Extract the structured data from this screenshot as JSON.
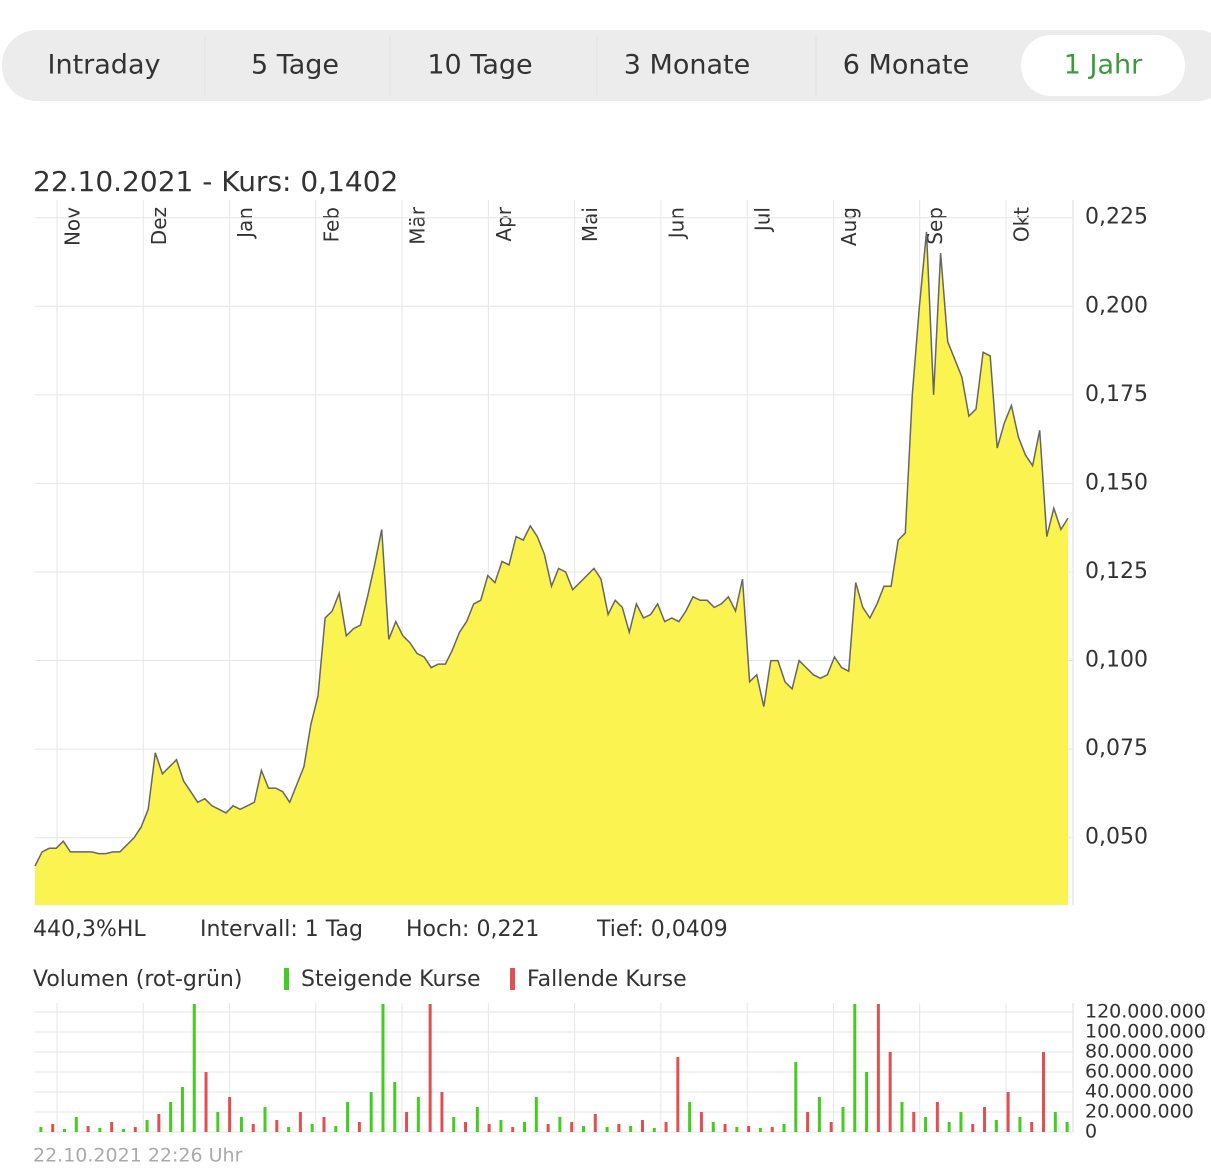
{
  "tabs": [
    "Intraday",
    "5 Tage",
    "10 Tage",
    "3 Monate",
    "6 Monate",
    "1 Jahr"
  ],
  "active_tab": 5,
  "chart_data": [
    {
      "type": "area",
      "title": "22.10.2021  - Kurs: 0,1402",
      "months": [
        "Nov",
        "Dez",
        "Jan",
        "Feb",
        "Mär",
        "Apr",
        "Mai",
        "Jun",
        "Jul",
        "Aug",
        "Sep",
        "Okt"
      ],
      "series": [
        {
          "name": "Kurs",
          "color": "#fbf34f",
          "line_color": "#666666",
          "values": [
            0.042,
            0.046,
            0.047,
            0.047,
            0.049,
            0.046,
            0.046,
            0.046,
            0.046,
            0.0455,
            0.0455,
            0.046,
            0.046,
            0.048,
            0.05,
            0.053,
            0.058,
            0.074,
            0.068,
            0.07,
            0.072,
            0.066,
            0.063,
            0.06,
            0.061,
            0.059,
            0.058,
            0.057,
            0.059,
            0.058,
            0.059,
            0.06,
            0.069,
            0.064,
            0.064,
            0.063,
            0.06,
            0.065,
            0.07,
            0.082,
            0.09,
            0.112,
            0.114,
            0.119,
            0.107,
            0.109,
            0.11,
            0.118,
            0.127,
            0.137,
            0.106,
            0.111,
            0.107,
            0.105,
            0.102,
            0.101,
            0.098,
            0.099,
            0.099,
            0.103,
            0.108,
            0.111,
            0.116,
            0.117,
            0.124,
            0.122,
            0.128,
            0.127,
            0.135,
            0.134,
            0.138,
            0.135,
            0.13,
            0.121,
            0.126,
            0.125,
            0.12,
            0.122,
            0.124,
            0.126,
            0.123,
            0.113,
            0.117,
            0.115,
            0.108,
            0.116,
            0.112,
            0.113,
            0.116,
            0.111,
            0.112,
            0.111,
            0.114,
            0.118,
            0.117,
            0.117,
            0.115,
            0.116,
            0.118,
            0.114,
            0.123,
            0.094,
            0.096,
            0.087,
            0.1,
            0.1,
            0.094,
            0.092,
            0.1,
            0.098,
            0.096,
            0.095,
            0.096,
            0.101,
            0.098,
            0.097,
            0.122,
            0.115,
            0.112,
            0.116,
            0.121,
            0.121,
            0.134,
            0.136,
            0.175,
            0.2,
            0.221,
            0.175,
            0.215,
            0.19,
            0.185,
            0.18,
            0.169,
            0.171,
            0.187,
            0.186,
            0.16,
            0.167,
            0.172,
            0.163,
            0.158,
            0.155,
            0.165,
            0.135,
            0.143,
            0.137,
            0.1402
          ]
        }
      ],
      "ylim": [
        0.031,
        0.23
      ],
      "yticks": [
        {
          "value": 0.05,
          "label": "0,050"
        },
        {
          "value": 0.075,
          "label": "0,075"
        },
        {
          "value": 0.1,
          "label": "0,100"
        },
        {
          "value": 0.125,
          "label": "0,125"
        },
        {
          "value": 0.15,
          "label": "0,150"
        },
        {
          "value": 0.175,
          "label": "0,175"
        },
        {
          "value": 0.2,
          "label": "0,200"
        },
        {
          "value": 0.225,
          "label": "0,225"
        }
      ],
      "grid": true,
      "stats": [
        "440,3%HL",
        "Intervall: 1 Tag",
        "Hoch:  0,221",
        "Tief: 0,0409"
      ]
    },
    {
      "type": "bar",
      "title": "Volumen (rot-grün)",
      "series": [
        {
          "name": "Steigende Kurse",
          "color": "#44cc22",
          "values": [
            5000000,
            null,
            3000000,
            15000000,
            null,
            4000000,
            null,
            3000000,
            null,
            12000000,
            null,
            30000000,
            45000000,
            128000000,
            null,
            20000000,
            null,
            15000000,
            null,
            25000000,
            null,
            5000000,
            null,
            8000000,
            null,
            6000000,
            30000000,
            null,
            40000000,
            128000000,
            50000000,
            null,
            35000000,
            null,
            null,
            15000000,
            null,
            25000000,
            null,
            12000000,
            null,
            10000000,
            35000000,
            null,
            15000000,
            null,
            6000000,
            null,
            5000000,
            null,
            6000000,
            null,
            4000000,
            null,
            null,
            30000000,
            null,
            10000000,
            null,
            5000000,
            null,
            4000000,
            null,
            8000000,
            70000000,
            null,
            35000000,
            null,
            25000000,
            128000000,
            60000000,
            null,
            null,
            30000000,
            null,
            15000000,
            null,
            10000000,
            20000000,
            null,
            null,
            12000000,
            null,
            15000000,
            null,
            null,
            20000000,
            10000000
          ]
        },
        {
          "name": "Fallende Kurse",
          "color": "#e05050",
          "values": [
            null,
            8000000,
            null,
            null,
            6000000,
            null,
            10000000,
            null,
            5000000,
            null,
            18000000,
            null,
            null,
            null,
            60000000,
            null,
            35000000,
            null,
            8000000,
            null,
            12000000,
            null,
            20000000,
            null,
            15000000,
            null,
            null,
            10000000,
            null,
            null,
            null,
            20000000,
            null,
            128000000,
            40000000,
            null,
            10000000,
            null,
            8000000,
            null,
            5000000,
            null,
            null,
            8000000,
            null,
            10000000,
            null,
            18000000,
            null,
            8000000,
            null,
            12000000,
            null,
            10000000,
            75000000,
            null,
            20000000,
            null,
            8000000,
            null,
            6000000,
            null,
            5000000,
            null,
            null,
            20000000,
            null,
            10000000,
            null,
            null,
            null,
            128000000,
            80000000,
            null,
            20000000,
            null,
            30000000,
            null,
            null,
            8000000,
            25000000,
            null,
            40000000,
            null,
            10000000,
            80000000,
            null,
            null
          ]
        }
      ],
      "ylim": [
        0,
        129000000
      ],
      "yticks": [
        0,
        {
          "value": 20000000,
          "label": "20.000.000"
        },
        {
          "value": 40000000,
          "label": "40.000.000"
        },
        {
          "value": 60000000,
          "label": "60.000.000"
        },
        {
          "value": 80000000,
          "label": "80.000.000"
        },
        {
          "value": 100000000,
          "label": "100.000.000"
        },
        {
          "value": 120000000,
          "label": "120.000.000"
        }
      ],
      "grid": true,
      "footer": "22.10.2021 22:26 Uhr"
    }
  ]
}
